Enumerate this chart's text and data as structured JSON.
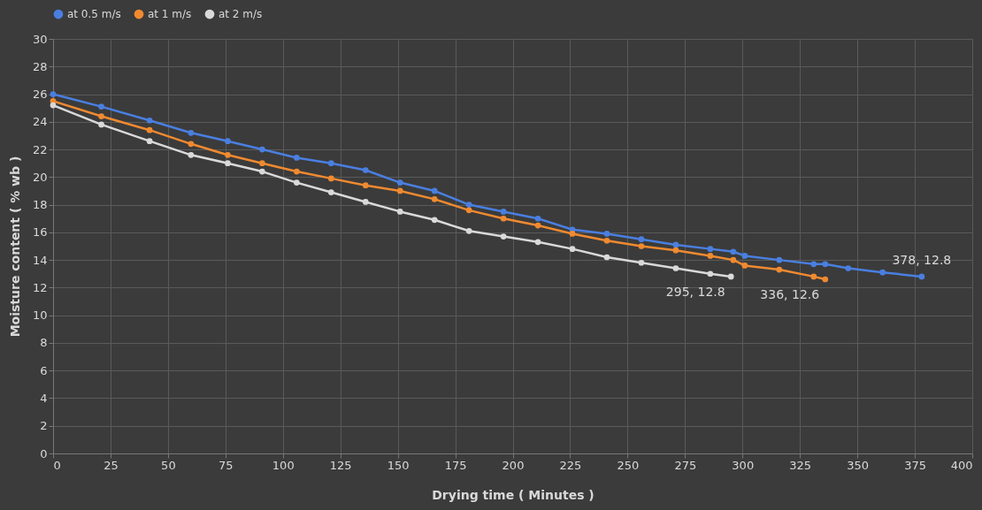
{
  "chart_data": {
    "type": "line",
    "xlabel": "Drying time ( Minutes )",
    "ylabel": "Moisture content  ( % wb )",
    "xlim": [
      0,
      400
    ],
    "xticks": [
      0,
      25,
      50,
      75,
      100,
      125,
      150,
      175,
      200,
      225,
      250,
      275,
      300,
      325,
      350,
      375,
      400
    ],
    "ylim": [
      0,
      30
    ],
    "yticks": [
      0,
      2,
      4,
      6,
      8,
      10,
      12,
      14,
      16,
      18,
      20,
      22,
      24,
      26,
      28,
      30
    ],
    "grid": true,
    "legend": "top",
    "marker": "circle",
    "line_style": "solid",
    "series": [
      {
        "name": "at 0.5 m/s",
        "color": "#4a7fe0",
        "x": [
          0,
          21,
          42,
          60,
          76,
          91,
          106,
          121,
          136,
          151,
          166,
          181,
          196,
          211,
          226,
          241,
          256,
          271,
          286,
          296,
          301,
          316,
          331,
          336,
          346,
          361,
          378
        ],
        "values": [
          26,
          25.1,
          24.1,
          23.2,
          22.6,
          22.0,
          21.4,
          21.0,
          20.5,
          19.6,
          19.0,
          18.0,
          17.5,
          17.0,
          16.2,
          15.9,
          15.5,
          15.1,
          14.8,
          14.6,
          14.3,
          14.0,
          13.7,
          13.7,
          13.4,
          13.1,
          12.8
        ]
      },
      {
        "name": "at 1 m/s",
        "color": "#f08a30",
        "x": [
          0,
          21,
          42,
          60,
          76,
          91,
          106,
          121,
          136,
          151,
          166,
          181,
          196,
          211,
          226,
          241,
          256,
          271,
          286,
          296,
          301,
          316,
          331,
          336
        ],
        "values": [
          25.5,
          24.4,
          23.4,
          22.4,
          21.6,
          21.0,
          20.4,
          19.9,
          19.4,
          19.0,
          18.4,
          17.6,
          17.0,
          16.5,
          15.9,
          15.4,
          15.0,
          14.7,
          14.3,
          14.0,
          13.6,
          13.3,
          12.8,
          12.6
        ]
      },
      {
        "name": "at 2 m/s",
        "color": "#d9d9d9",
        "x": [
          0,
          21,
          42,
          60,
          76,
          91,
          106,
          121,
          136,
          151,
          166,
          181,
          196,
          211,
          226,
          241,
          256,
          271,
          286,
          295
        ],
        "values": [
          25.2,
          23.8,
          22.6,
          21.6,
          21.0,
          20.4,
          19.6,
          18.9,
          18.2,
          17.5,
          16.9,
          16.1,
          15.7,
          15.3,
          14.8,
          14.2,
          13.8,
          13.4,
          13.0,
          12.8
        ]
      }
    ],
    "annotations": [
      {
        "text": "295, 12.8",
        "x": 295,
        "y": 12.8
      },
      {
        "text": "336, 12.6",
        "x": 336,
        "y": 12.6
      },
      {
        "text": "378, 12.8",
        "x": 378,
        "y": 12.8
      }
    ]
  }
}
